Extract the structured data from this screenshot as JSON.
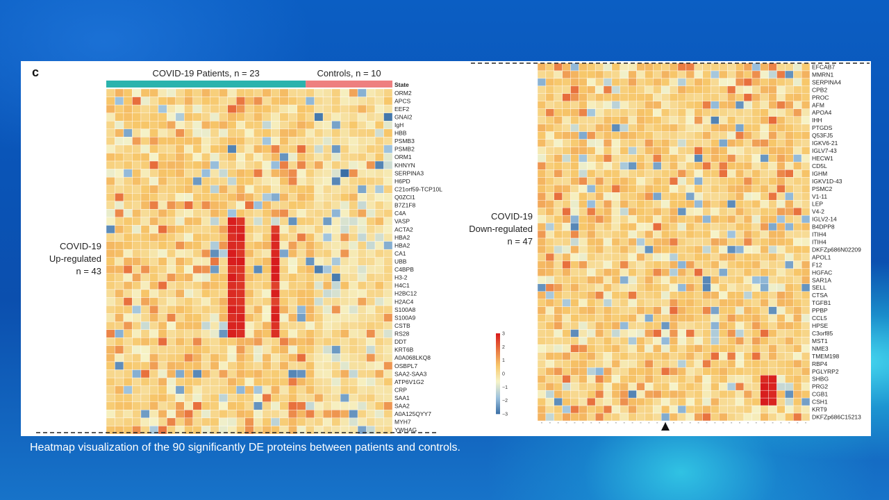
{
  "caption": "Heatmap visualization of the 90 significantly DE proteins between patients and controls.",
  "panel_label": "c",
  "chart_data": [
    {
      "type": "heatmap",
      "group_labels": [
        {
          "text": "COVID-19 Patients, n = 23",
          "count": 23,
          "color": "#2bb3ad"
        },
        {
          "text": "Controls, n = 10",
          "count": 10,
          "color": "#ee7f7f"
        }
      ],
      "state_label": "State",
      "row_group_label": [
        "COVID-19",
        "Up-regulated",
        "n = 43"
      ],
      "rows": [
        "ORM2",
        "APCS",
        "EEF2",
        "GNAI2",
        "IgH",
        "HBB",
        "PSMB3",
        "PSMB2",
        "ORM1",
        "KHNYN",
        "SERPINA3",
        "H6PD",
        "C21orf59-TCP10L",
        "Q0ZCI1",
        "B7Z1F8",
        "C4A",
        "VASP",
        "ACTA2",
        "HBA2",
        "HBA2",
        "CA1",
        "UBB",
        "C4BPB",
        "H3-2",
        "H4C1",
        "H2BC12",
        "H2AC4",
        "S100A8",
        "S100A9",
        "CSTB",
        "RS28",
        "DDT",
        "KRT6B",
        "A0A068LKQ8",
        "OSBPL7",
        "SAA2-SAA3",
        "ATP6V1G2",
        "CRP",
        "SAA1",
        "SAA2",
        "A0A125QYY7",
        "MYH7",
        "YWHAG"
      ]
    },
    {
      "type": "heatmap",
      "row_group_label": [
        "COVID-19",
        "Down-regulated",
        "n = 47"
      ],
      "rows": [
        "EFCAB7",
        "MMRN1",
        "SERPINA4",
        "CPB2",
        "PROC",
        "AFM",
        "APOA4",
        "IHH",
        "PTGDS",
        "Q53FJ5",
        "IGKV6-21",
        "IGLV7-43",
        "HECW1",
        "CD5L",
        "IGHM",
        "IGKV1D-43",
        "PSMC2",
        "V1-11",
        "LEP",
        "V4-2",
        "IGLV2-14",
        "B4DPP8",
        "ITIH4",
        "ITIH4",
        "DKFZp686N02209",
        "APOL1",
        "F12",
        "HGFAC",
        "SAR1A",
        "SELL",
        "CTSA",
        "TGFB1",
        "PPBP",
        "CCL5",
        "HPSE",
        "C3orf85",
        "MST1",
        "NME3",
        "TMEM198",
        "RBP4",
        "PGLYRP2",
        "SHBG",
        "PRG2",
        "CGB1",
        "CSH1",
        "KRT9",
        "DKFZp686C15213"
      ]
    }
  ],
  "colorbar": {
    "ticks": [
      "3",
      "2",
      "1",
      "0",
      "−1",
      "−2",
      "−3"
    ],
    "min": -3,
    "max": 3,
    "colors": [
      "#3a6ea5",
      "#9dc2de",
      "#f6f3c8",
      "#f7c76a",
      "#e8723e",
      "#d7191c"
    ]
  }
}
